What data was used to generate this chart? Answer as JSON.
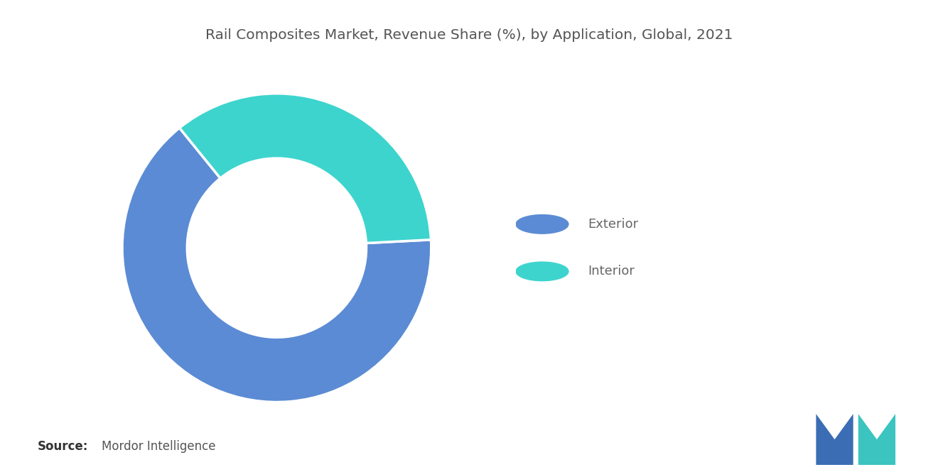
{
  "title": "Rail Composites Market, Revenue Share (%), by Application, Global, 2021",
  "segments": [
    "Exterior",
    "Interior"
  ],
  "values": [
    65,
    35
  ],
  "colors": [
    "#5B8BD4",
    "#3DD4CE"
  ],
  "background_color": "#ffffff",
  "title_fontsize": 14.5,
  "title_color": "#555555",
  "legend_fontsize": 13,
  "legend_text_color": "#666666",
  "source_bold": "Source:",
  "source_text": "Mordor Intelligence",
  "source_fontsize": 12,
  "donut_width": 0.42,
  "start_angle": 3,
  "logo_colors": [
    "#3B6DB5",
    "#3BC4C0"
  ]
}
